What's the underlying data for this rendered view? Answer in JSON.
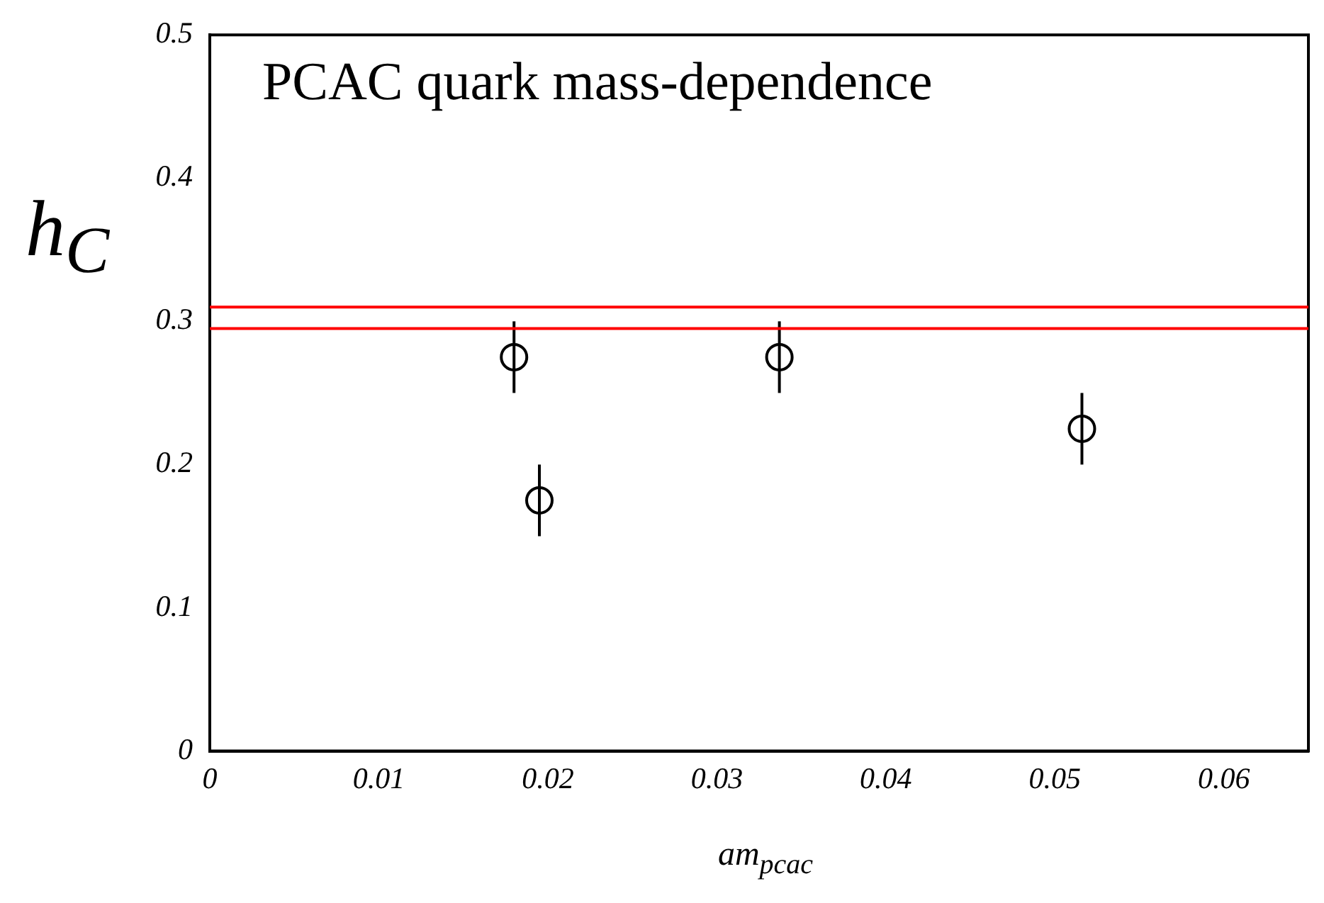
{
  "chart_data": {
    "type": "scatter",
    "xlabel": "am$_{pcac}$",
    "ylabel": "h$_{C}$",
    "annotations": [
      "PCAC quark mass-dependence"
    ],
    "series": [
      {
        "color": "#000000",
        "x": [
          0.018,
          0.0195,
          0.0337,
          0.0516
        ],
        "values": [
          0.275,
          0.175,
          0.275,
          0.225
        ],
        "errors": [
          0.025,
          0.025,
          0.025,
          0.025
        ]
      }
    ],
    "marker": "circle",
    "xlim": [
      0,
      0.065
    ],
    "ylim": [
      0,
      0.5
    ],
    "xticks": [
      0,
      0.01,
      0.02,
      0.03,
      0.04,
      0.05,
      0.06
    ],
    "yticks": [
      0,
      0.1,
      0.2,
      0.3,
      0.4,
      0.5
    ],
    "ref_lines": [
      {
        "axis": "y",
        "value": 0.31,
        "color": "#ff0000"
      },
      {
        "axis": "y",
        "value": 0.295,
        "color": "#ff0000"
      }
    ],
    "grid": false,
    "legend": false
  }
}
